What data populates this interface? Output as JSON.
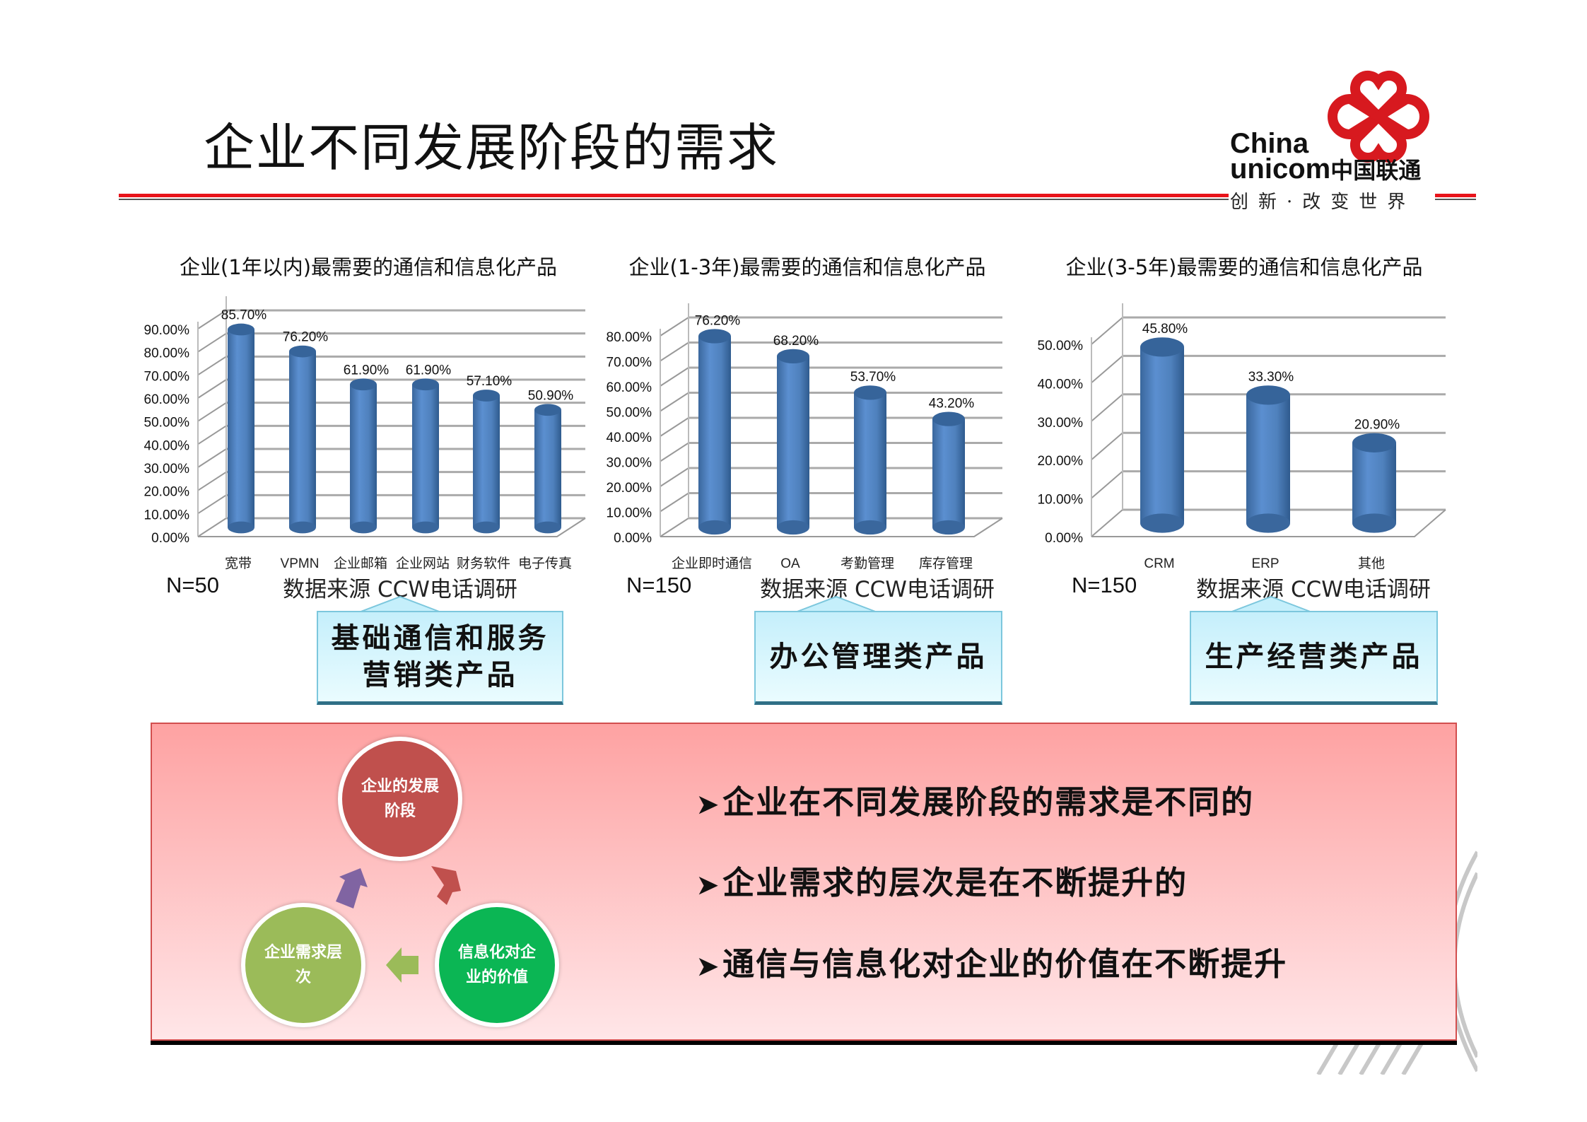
{
  "header": {
    "title": "企业不同发展阶段的需求",
    "logo": {
      "en_line1": "China",
      "en_line2": "unicom",
      "cn": "中国联通",
      "slogan": "创新·改变世界",
      "brand_color": "#d7191f"
    }
  },
  "charts": [
    {
      "n_label": "N=50",
      "source": "数据来源 CCW电话调研",
      "callout": [
        "基础通信和服务",
        "营销类产品"
      ]
    },
    {
      "n_label": "N=150",
      "source": "数据来源 CCW电话调研",
      "callout": [
        "办公管理类产品"
      ]
    },
    {
      "n_label": "N=150",
      "source": "数据来源 CCW电话调研",
      "callout": [
        "生产经营类产品"
      ]
    }
  ],
  "chart_data": [
    {
      "type": "bar",
      "title": "企业(1年以内)最需要的通信和信息化产品",
      "categories": [
        "宽带",
        "VPMN",
        "企业邮箱",
        "企业网站",
        "财务软件",
        "电子传真"
      ],
      "values": [
        85.7,
        76.2,
        61.9,
        61.9,
        57.1,
        50.9
      ],
      "data_labels": [
        "85.70%",
        "76.20%",
        "61.90%",
        "61.90%",
        "57.10%",
        "50.90%"
      ],
      "yticks": [
        "0.00%",
        "10.00%",
        "20.00%",
        "30.00%",
        "40.00%",
        "50.00%",
        "60.00%",
        "70.00%",
        "80.00%",
        "90.00%"
      ],
      "ylim": [
        0,
        90
      ],
      "grid": true,
      "style": "3d-cylinder",
      "color": "#4f81bd"
    },
    {
      "type": "bar",
      "title": "企业(1-3年)最需要的通信和信息化产品",
      "categories": [
        "企业即时通信",
        "OA",
        "考勤管理",
        "库存管理"
      ],
      "values": [
        76.2,
        68.2,
        53.7,
        43.2
      ],
      "data_labels": [
        "76.20%",
        "68.20%",
        "53.70%",
        "43.20%"
      ],
      "yticks": [
        "0.00%",
        "10.00%",
        "20.00%",
        "30.00%",
        "40.00%",
        "50.00%",
        "60.00%",
        "70.00%",
        "80.00%"
      ],
      "ylim": [
        0,
        80
      ],
      "grid": true,
      "style": "3d-cylinder",
      "color": "#4f81bd"
    },
    {
      "type": "bar",
      "title": "企业(3-5年)最需要的通信和信息化产品",
      "categories": [
        "CRM",
        "ERP",
        "其他"
      ],
      "values": [
        45.8,
        33.3,
        20.9
      ],
      "data_labels": [
        "45.80%",
        "33.30%",
        "20.90%"
      ],
      "yticks": [
        "0.00%",
        "10.00%",
        "20.00%",
        "30.00%",
        "40.00%",
        "50.00%"
      ],
      "ylim": [
        0,
        50
      ],
      "grid": true,
      "style": "3d-cylinder",
      "color": "#4f81bd"
    }
  ],
  "cycle": {
    "nodes": [
      {
        "label": "企业的发展阶段",
        "color": "#c0504d"
      },
      {
        "label": "信息化对企业的价值",
        "color": "#0bb654"
      },
      {
        "label": "企业需求层次",
        "color": "#9bbb59"
      }
    ],
    "arrow_colors": [
      "#c0504d",
      "#9bbb59",
      "#8064a2"
    ]
  },
  "bullets": [
    "企业在不同发展阶段的需求是不同的",
    "企业需求的层次是在不断提升的",
    "通信与信息化对企业的价值在不断提升"
  ]
}
